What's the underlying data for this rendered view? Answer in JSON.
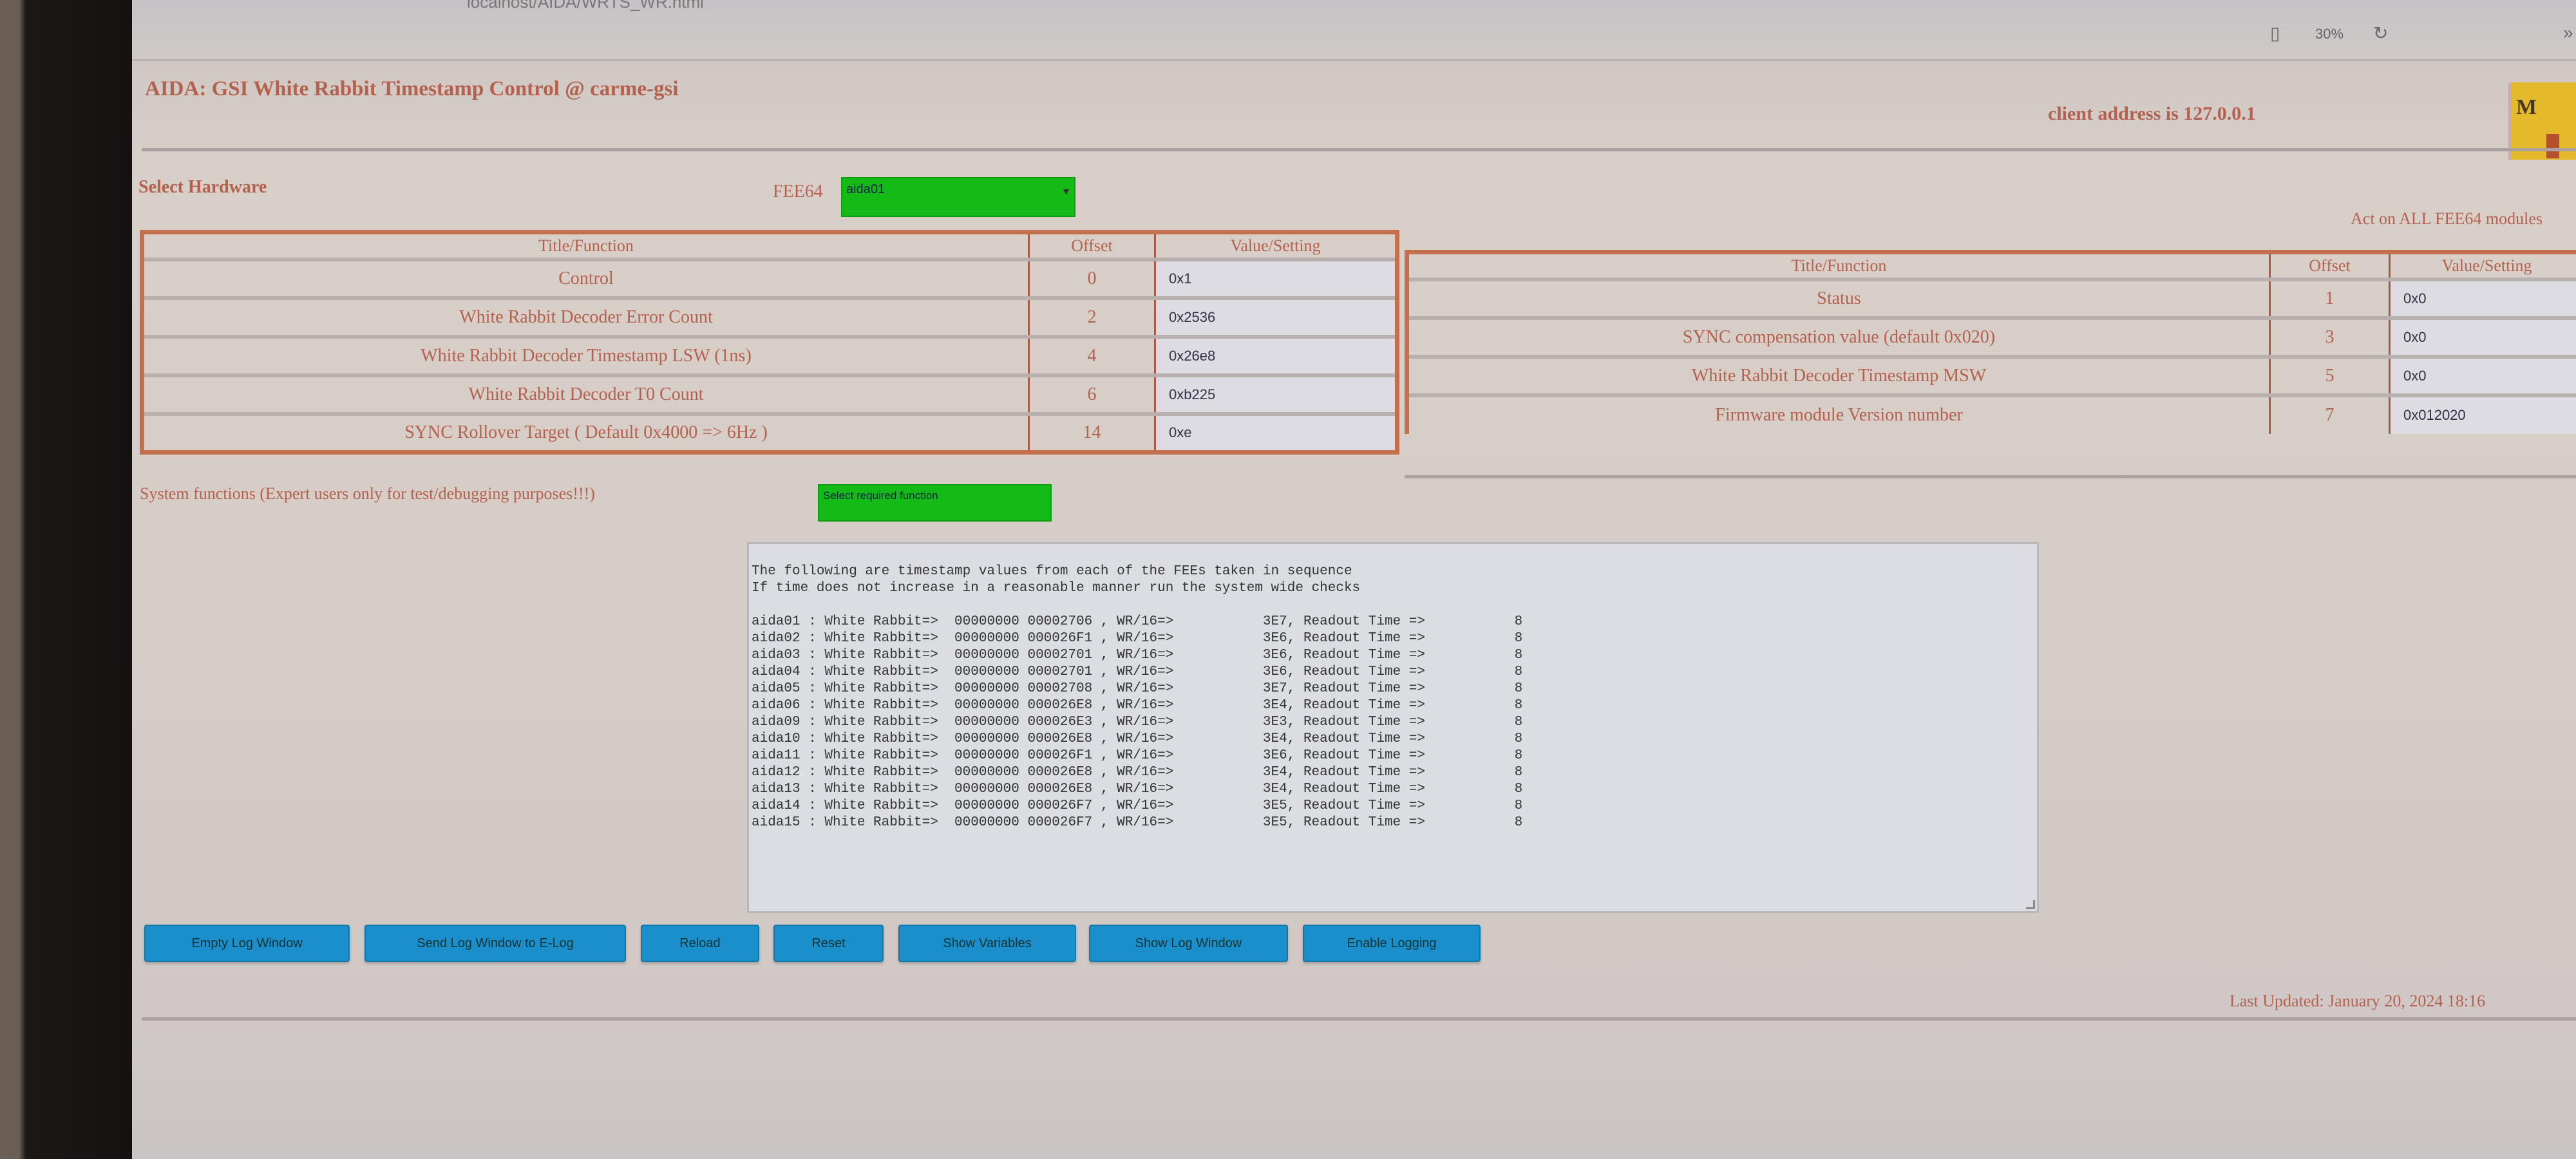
{
  "browser": {
    "url": "localhost/AIDA/WRTS_WR.html",
    "zoom": "30%"
  },
  "header": {
    "title": "AIDA: GSI White Rabbit Timestamp Control @ carme-gsi",
    "client_address": "client address is 127.0.0.1"
  },
  "hardware": {
    "label": "Select Hardware",
    "fee_label": "FEE64",
    "fee_selected": "aida01",
    "act_all": "Act on ALL FEE64 modules"
  },
  "left_table": {
    "headers": [
      "Title/Function",
      "Offset",
      "Value/Setting"
    ],
    "rows": [
      {
        "title": "Control",
        "offset": "0",
        "value": "0x1"
      },
      {
        "title": "White Rabbit Decoder Error Count",
        "offset": "2",
        "value": "0x2536"
      },
      {
        "title": "White Rabbit Decoder Timestamp LSW (1ns)",
        "offset": "4",
        "value": "0x26e8"
      },
      {
        "title": "White Rabbit Decoder T0 Count",
        "offset": "6",
        "value": "0xb225"
      },
      {
        "title": "SYNC Rollover Target ( Default 0x4000 => 6Hz )",
        "offset": "14",
        "value": "0xe"
      }
    ]
  },
  "right_table": {
    "headers": [
      "Title/Function",
      "Offset",
      "Value/Setting"
    ],
    "rows": [
      {
        "title": "Status",
        "offset": "1",
        "value": "0x0"
      },
      {
        "title": "SYNC compensation value (default 0x020)",
        "offset": "3",
        "value": "0x0"
      },
      {
        "title": "White Rabbit Decoder Timestamp MSW",
        "offset": "5",
        "value": "0x0"
      },
      {
        "title": "Firmware module Version number",
        "offset": "7",
        "value": "0x012020"
      }
    ]
  },
  "system": {
    "label": "System functions (Expert users only for test/debugging purposes!!!)",
    "select": "Select required function"
  },
  "log": {
    "intro": [
      "The following are timestamp values from each of the FEEs taken in sequence",
      "If time does not increase in a reasonable manner run the system wide checks"
    ],
    "lines": [
      "aida01 : White Rabbit=>  00000000 00002706 , WR/16=>           3E7, Readout Time =>           8",
      "aida02 : White Rabbit=>  00000000 000026F1 , WR/16=>           3E6, Readout Time =>           8",
      "aida03 : White Rabbit=>  00000000 00002701 , WR/16=>           3E6, Readout Time =>           8",
      "aida04 : White Rabbit=>  00000000 00002701 , WR/16=>           3E6, Readout Time =>           8",
      "aida05 : White Rabbit=>  00000000 00002708 , WR/16=>           3E7, Readout Time =>           8",
      "aida06 : White Rabbit=>  00000000 000026E8 , WR/16=>           3E4, Readout Time =>           8",
      "aida09 : White Rabbit=>  00000000 000026E3 , WR/16=>           3E3, Readout Time =>           8",
      "aida10 : White Rabbit=>  00000000 000026E8 , WR/16=>           3E4, Readout Time =>           8",
      "aida11 : White Rabbit=>  00000000 000026F1 , WR/16=>           3E6, Readout Time =>           8",
      "aida12 : White Rabbit=>  00000000 000026E8 , WR/16=>           3E4, Readout Time =>           8",
      "aida13 : White Rabbit=>  00000000 000026E8 , WR/16=>           3E4, Readout Time =>           8",
      "aida14 : White Rabbit=>  00000000 000026F7 , WR/16=>           3E5, Readout Time =>           8",
      "aida15 : White Rabbit=>  00000000 000026F7 , WR/16=>           3E5, Readout Time =>           8"
    ]
  },
  "buttons": [
    "Empty Log Window",
    "Send Log Window to E-Log",
    "Reload",
    "Reset",
    "Show Variables",
    "Show Log Window",
    "Enable Logging"
  ],
  "footer": {
    "last_updated": "Last Updated: January 20, 2024 18:16"
  },
  "colors": {
    "accent_text": "#b5614f",
    "table_border": "#c4704e",
    "select_green": "#14bb16",
    "button_blue": "#1a8fcb",
    "logo_yellow": "#e5b92c"
  }
}
